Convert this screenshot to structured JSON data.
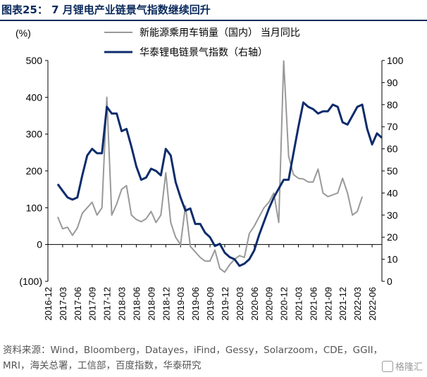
{
  "figure": {
    "title": "图表25：  7 月锂电产业链景气指数继续回升",
    "source": "资料来源：Wind，Bloomberg，Datayes，iFind，Gessy，Solarzoom，CDE，GGII，MRI，海关总署，工信部，百度指数，华泰研究",
    "watermark": "格隆汇",
    "colors": {
      "title": "#0a2a5c",
      "left_series": "#999999",
      "right_series": "#0d2c6c"
    }
  },
  "chart_data": {
    "type": "line",
    "ylabel": "(%)",
    "ylim": [
      -100,
      500
    ],
    "y_ticks": [
      "(100)",
      "0",
      "100",
      "200",
      "300",
      "400",
      "500"
    ],
    "y2lim": [
      0,
      100
    ],
    "y2_ticks": [
      "0",
      "10",
      "20",
      "30",
      "40",
      "50",
      "60",
      "70",
      "80",
      "90",
      "100"
    ],
    "x_ticks": [
      "2016-12",
      "2017-03",
      "2017-06",
      "2017-09",
      "2017-12",
      "2018-03",
      "2018-06",
      "2018-09",
      "2018-12",
      "2019-03",
      "2019-06",
      "2019-09",
      "2019-12",
      "2020-03",
      "2020-06",
      "2020-09",
      "2020-12",
      "2021-03",
      "2021-06",
      "2021-09",
      "2021-12",
      "2022-03",
      "2022-06"
    ],
    "grid": false,
    "legend": "top-right",
    "x_start": "2016-12",
    "series": [
      {
        "name": "新能源乘用车销量（国内） 当月同比",
        "axis": "left",
        "color": "#999999",
        "values": [
          null,
          null,
          75,
          43,
          47,
          25,
          45,
          85,
          100,
          115,
          80,
          100,
          400,
          80,
          110,
          150,
          160,
          80,
          68,
          62,
          70,
          90,
          60,
          80,
          195,
          60,
          20,
          0,
          105,
          -5,
          -20,
          -35,
          -45,
          -45,
          -15,
          -65,
          -75,
          -55,
          -40,
          -30,
          -35,
          30,
          50,
          75,
          100,
          115,
          140,
          60,
          500,
          240,
          190,
          180,
          178,
          170,
          170,
          205,
          140,
          130,
          135,
          140,
          180,
          140,
          80,
          90,
          130
        ]
      },
      {
        "name": "华泰锂电链景气指数（右轴）",
        "axis": "right",
        "color": "#0d2c6c",
        "values": [
          null,
          null,
          44,
          41,
          38,
          37,
          38,
          48,
          57,
          60,
          58,
          58,
          79,
          76,
          76,
          68,
          69,
          61,
          52,
          46,
          47,
          51,
          50,
          48,
          60,
          57,
          45,
          38,
          32,
          33,
          26,
          26,
          22,
          20,
          16,
          17,
          13,
          11,
          10,
          7,
          8,
          10,
          14,
          21,
          27,
          33,
          38,
          42,
          46,
          46,
          58,
          70,
          81,
          79,
          78,
          76,
          77,
          77,
          80,
          79,
          72,
          71,
          75,
          79,
          80,
          69,
          62,
          67,
          65
        ]
      }
    ]
  }
}
